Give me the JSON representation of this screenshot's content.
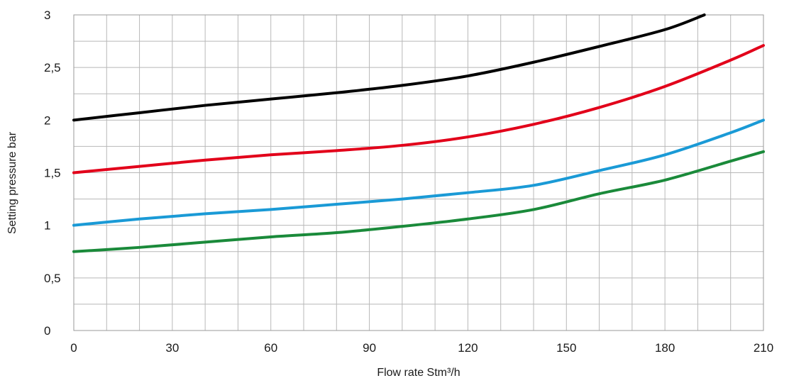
{
  "chart_data": {
    "type": "line",
    "title": "",
    "xlabel": "Flow rate Stm³/h",
    "ylabel": "Setting pressure bar",
    "xlim": [
      0,
      210
    ],
    "ylim": [
      0,
      3
    ],
    "x_ticks": [
      "0",
      "30",
      "60",
      "90",
      "120",
      "150",
      "180",
      "210"
    ],
    "x_tick_values": [
      0,
      30,
      60,
      90,
      120,
      150,
      180,
      210
    ],
    "y_ticks": [
      "0",
      "0,5",
      "1",
      "1,5",
      "2",
      "2,5",
      "3"
    ],
    "y_tick_values": [
      0,
      0.5,
      1,
      1.5,
      2,
      2.5,
      3
    ],
    "x_grid_step": 10,
    "y_grid_step": 0.25,
    "grid": true,
    "legend": "none",
    "series": [
      {
        "color": "#000000",
        "x": [
          0,
          20,
          40,
          60,
          80,
          100,
          120,
          140,
          160,
          180,
          192
        ],
        "y": [
          2.0,
          2.07,
          2.14,
          2.2,
          2.26,
          2.33,
          2.42,
          2.55,
          2.7,
          2.86,
          3.0
        ]
      },
      {
        "color": "#e2001a",
        "x": [
          0,
          20,
          40,
          60,
          80,
          100,
          120,
          140,
          160,
          180,
          200,
          210
        ],
        "y": [
          1.5,
          1.56,
          1.62,
          1.67,
          1.71,
          1.76,
          1.84,
          1.96,
          2.12,
          2.32,
          2.57,
          2.71
        ]
      },
      {
        "color": "#1a9ad6",
        "x": [
          0,
          20,
          40,
          60,
          80,
          100,
          120,
          140,
          160,
          180,
          200,
          210
        ],
        "y": [
          1.0,
          1.06,
          1.11,
          1.15,
          1.2,
          1.25,
          1.31,
          1.38,
          1.52,
          1.67,
          1.88,
          2.0
        ]
      },
      {
        "color": "#1a8a3a",
        "x": [
          0,
          20,
          40,
          60,
          80,
          100,
          120,
          140,
          160,
          180,
          200,
          210
        ],
        "y": [
          0.75,
          0.79,
          0.84,
          0.89,
          0.93,
          0.99,
          1.06,
          1.15,
          1.3,
          1.43,
          1.61,
          1.7
        ]
      }
    ]
  }
}
